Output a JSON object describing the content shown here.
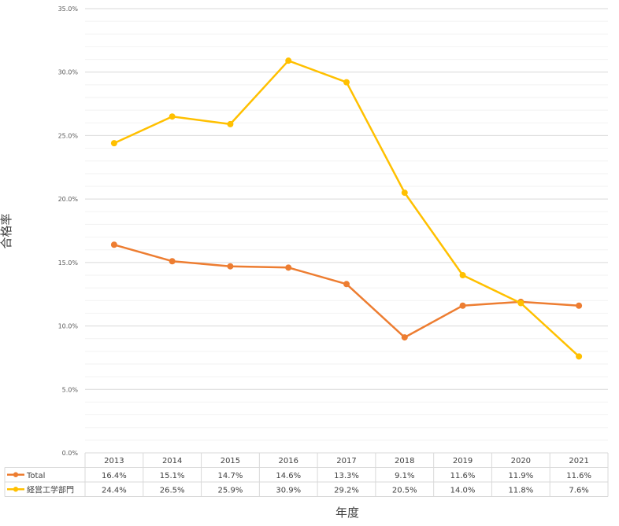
{
  "chart_data": {
    "type": "line",
    "title": "",
    "xlabel": "年度",
    "ylabel": "合格率",
    "categories": [
      "2013",
      "2014",
      "2015",
      "2016",
      "2017",
      "2018",
      "2019",
      "2020",
      "2021"
    ],
    "ylim": [
      0,
      35
    ],
    "y_ticks": [
      "0.0%",
      "5.0%",
      "10.0%",
      "15.0%",
      "20.0%",
      "25.0%",
      "30.0%",
      "35.0%"
    ],
    "grid": true,
    "legend": "data-table-left",
    "series": [
      {
        "name": "Total",
        "color": "#ED7D31",
        "values": [
          16.4,
          15.1,
          14.7,
          14.6,
          13.3,
          9.1,
          11.6,
          11.9,
          11.6
        ],
        "labels": [
          "16.4%",
          "15.1%",
          "14.7%",
          "14.6%",
          "13.3%",
          "9.1%",
          "11.6%",
          "11.9%",
          "11.6%"
        ]
      },
      {
        "name": "経営工学部門",
        "color": "#FFC000",
        "values": [
          24.4,
          26.5,
          25.9,
          30.9,
          29.2,
          20.5,
          14.0,
          11.8,
          7.6
        ],
        "labels": [
          "24.4%",
          "26.5%",
          "25.9%",
          "30.9%",
          "29.2%",
          "20.5%",
          "14.0%",
          "11.8%",
          "7.6%"
        ]
      }
    ]
  }
}
